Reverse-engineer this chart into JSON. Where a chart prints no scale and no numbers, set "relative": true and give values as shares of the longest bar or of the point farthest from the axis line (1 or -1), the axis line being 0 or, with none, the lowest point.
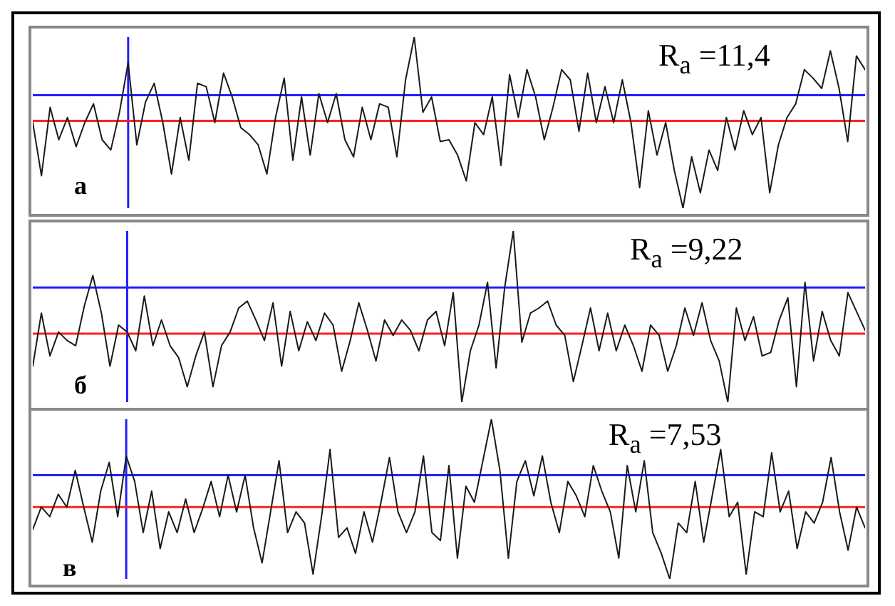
{
  "chart_data": [
    {
      "type": "line",
      "relative": true,
      "legend": false,
      "grid": false,
      "marker": "none",
      "line_style": "solid",
      "categories": [
        null,
        null,
        null,
        null,
        null,
        null,
        null,
        null,
        null,
        null,
        null,
        null,
        null,
        null,
        null,
        null,
        null,
        null,
        null,
        null,
        null,
        null,
        null,
        null,
        null,
        null,
        null,
        null,
        null,
        null,
        null,
        null,
        null,
        null,
        null,
        null,
        null,
        null,
        null,
        null,
        null,
        null,
        null,
        null,
        null,
        null,
        null,
        null,
        null,
        null,
        null,
        null,
        null,
        null,
        null,
        null,
        null,
        null,
        null,
        null,
        null,
        null,
        null,
        null,
        null,
        null,
        null,
        null,
        null,
        null,
        null,
        null,
        null,
        null,
        null,
        null,
        null,
        null,
        null,
        null,
        null,
        null,
        null,
        null,
        null,
        null,
        null,
        null,
        null,
        null,
        null,
        null,
        null,
        null,
        null,
        null,
        null
      ],
      "series": [
        {
          "color": "#1a1a1a",
          "values": [
            0.5,
            0.19,
            0.59,
            0.4,
            0.53,
            0.36,
            0.5,
            0.61,
            0.4,
            0.34,
            0.56,
            0.85,
            0.37,
            0.62,
            0.73,
            0.5,
            0.2,
            0.53,
            0.28,
            0.73,
            0.71,
            0.5,
            0.79,
            0.65,
            0.47,
            0.43,
            0.37,
            0.2,
            0.53,
            0.76,
            0.28,
            0.65,
            0.31,
            0.67,
            0.5,
            0.67,
            0.4,
            0.3,
            0.59,
            0.4,
            0.61,
            0.59,
            0.3,
            0.75,
            1,
            0.56,
            0.65,
            0.39,
            0.4,
            0.31,
            0.16,
            0.5,
            0.43,
            0.65,
            0.25,
            0.78,
            0.53,
            0.81,
            0.65,
            0.4,
            0.59,
            0.81,
            0.75,
            0.45,
            0.79,
            0.5,
            0.71,
            0.5,
            0.75,
            0.5,
            0.12,
            0.57,
            0.31,
            0.5,
            0.22,
            0,
            0.3,
            0.09,
            0.34,
            0.22,
            0.53,
            0.34,
            0.57,
            0.43,
            0.53,
            0.09,
            0.37,
            0.53,
            0.61,
            0.81,
            0.76,
            0.7,
            0.92,
            0.7,
            0.39,
            0.89,
            0.81
          ]
        }
      ],
      "ref_lines": [
        {
          "axis": "y",
          "value": 0.51,
          "color": "#ff2020"
        },
        {
          "axis": "y",
          "value": 0.66,
          "color": "#2020ff"
        }
      ],
      "annotations": [
        "R$_{a}$ =11,4",
        "а"
      ]
    },
    {
      "type": "line",
      "relative": true,
      "legend": false,
      "grid": false,
      "marker": "none",
      "line_style": "solid",
      "categories": [
        null,
        null,
        null,
        null,
        null,
        null,
        null,
        null,
        null,
        null,
        null,
        null,
        null,
        null,
        null,
        null,
        null,
        null,
        null,
        null,
        null,
        null,
        null,
        null,
        null,
        null,
        null,
        null,
        null,
        null,
        null,
        null,
        null,
        null,
        null,
        null,
        null,
        null,
        null,
        null,
        null,
        null,
        null,
        null,
        null,
        null,
        null,
        null,
        null,
        null,
        null,
        null,
        null,
        null,
        null,
        null,
        null,
        null,
        null,
        null,
        null,
        null,
        null,
        null,
        null,
        null,
        null,
        null,
        null,
        null,
        null,
        null,
        null,
        null,
        null,
        null,
        null,
        null,
        null,
        null,
        null,
        null,
        null,
        null,
        null,
        null,
        null,
        null,
        null,
        null,
        null,
        null,
        null,
        null,
        null,
        null,
        null,
        null
      ],
      "series": [
        {
          "color": "#1a1a1a",
          "values": [
            0.21,
            0.52,
            0.27,
            0.41,
            0.36,
            0.33,
            0.56,
            0.74,
            0.52,
            0.21,
            0.45,
            0.41,
            0.3,
            0.62,
            0.33,
            0.48,
            0.33,
            0.26,
            0.09,
            0.27,
            0.41,
            0.09,
            0.33,
            0.41,
            0.55,
            0.59,
            0.48,
            0.36,
            0.58,
            0.21,
            0.53,
            0.3,
            0.47,
            0.36,
            0.52,
            0.45,
            0.18,
            0.36,
            0.58,
            0.42,
            0.24,
            0.48,
            0.39,
            0.48,
            0.42,
            0.3,
            0.48,
            0.53,
            0.33,
            0.64,
            0,
            0.3,
            0.45,
            0.7,
            0.2,
            0.67,
            1,
            0.35,
            0.52,
            0.55,
            0.59,
            0.45,
            0.39,
            0.12,
            0.33,
            0.55,
            0.3,
            0.52,
            0.3,
            0.45,
            0.33,
            0.18,
            0.45,
            0.39,
            0.18,
            0.33,
            0.55,
            0.39,
            0.58,
            0.36,
            0.24,
            0,
            0.55,
            0.36,
            0.5,
            0.27,
            0.29,
            0.48,
            0.61,
            0.09,
            0.7,
            0.24,
            0.53,
            0.36,
            0.27,
            0.64,
            0.53,
            0.42
          ]
        }
      ],
      "ref_lines": [
        {
          "axis": "y",
          "value": 0.4,
          "color": "#ff2020"
        },
        {
          "axis": "y",
          "value": 0.67,
          "color": "#2020ff"
        }
      ],
      "annotations": [
        "R$_{a}$ =9,22",
        "б"
      ]
    },
    {
      "type": "line",
      "relative": true,
      "legend": false,
      "grid": false,
      "marker": "none",
      "line_style": "solid",
      "categories": [
        null,
        null,
        null,
        null,
        null,
        null,
        null,
        null,
        null,
        null,
        null,
        null,
        null,
        null,
        null,
        null,
        null,
        null,
        null,
        null,
        null,
        null,
        null,
        null,
        null,
        null,
        null,
        null,
        null,
        null,
        null,
        null,
        null,
        null,
        null,
        null,
        null,
        null,
        null,
        null,
        null,
        null,
        null,
        null,
        null,
        null,
        null,
        null,
        null,
        null,
        null,
        null,
        null,
        null,
        null,
        null,
        null,
        null,
        null,
        null,
        null,
        null,
        null,
        null,
        null,
        null,
        null,
        null,
        null,
        null,
        null,
        null,
        null,
        null,
        null,
        null,
        null,
        null,
        null,
        null,
        null,
        null,
        null,
        null,
        null,
        null,
        null,
        null,
        null,
        null,
        null,
        null,
        null,
        null,
        null,
        null,
        null,
        null,
        null
      ],
      "series": [
        {
          "color": "#1a1a1a",
          "values": [
            0.31,
            0.45,
            0.39,
            0.53,
            0.45,
            0.68,
            0.45,
            0.23,
            0.55,
            0.73,
            0.39,
            0.77,
            0.61,
            0.29,
            0.55,
            0.19,
            0.42,
            0.29,
            0.5,
            0.29,
            0.44,
            0.61,
            0.39,
            0.65,
            0.42,
            0.65,
            0.32,
            0.1,
            0.42,
            0.74,
            0.29,
            0.42,
            0.35,
            0.03,
            0.39,
            0.81,
            0.26,
            0.32,
            0.16,
            0.42,
            0.23,
            0.48,
            0.76,
            0.42,
            0.29,
            0.42,
            0.77,
            0.29,
            0.24,
            0.71,
            0.13,
            0.58,
            0.48,
            0.74,
            1,
            0.68,
            0.13,
            0.61,
            0.74,
            0.52,
            0.77,
            0.48,
            0.29,
            0.61,
            0.52,
            0.39,
            0.71,
            0.55,
            0.42,
            0.13,
            0.71,
            0.42,
            0.74,
            0.29,
            0.16,
            0,
            0.35,
            0.29,
            0.61,
            0.23,
            0.52,
            0.81,
            0.39,
            0.48,
            0.03,
            0.42,
            0.39,
            0.79,
            0.42,
            0.55,
            0.19,
            0.42,
            0.35,
            0.48,
            0.76,
            0.42,
            0.18,
            0.45,
            0.32
          ]
        }
      ],
      "ref_lines": [
        {
          "axis": "y",
          "value": 0.45,
          "color": "#ff2020"
        },
        {
          "axis": "y",
          "value": 0.65,
          "color": "#2020ff"
        }
      ],
      "annotations": [
        "R$_{a}$ =7,53",
        "в"
      ]
    }
  ]
}
